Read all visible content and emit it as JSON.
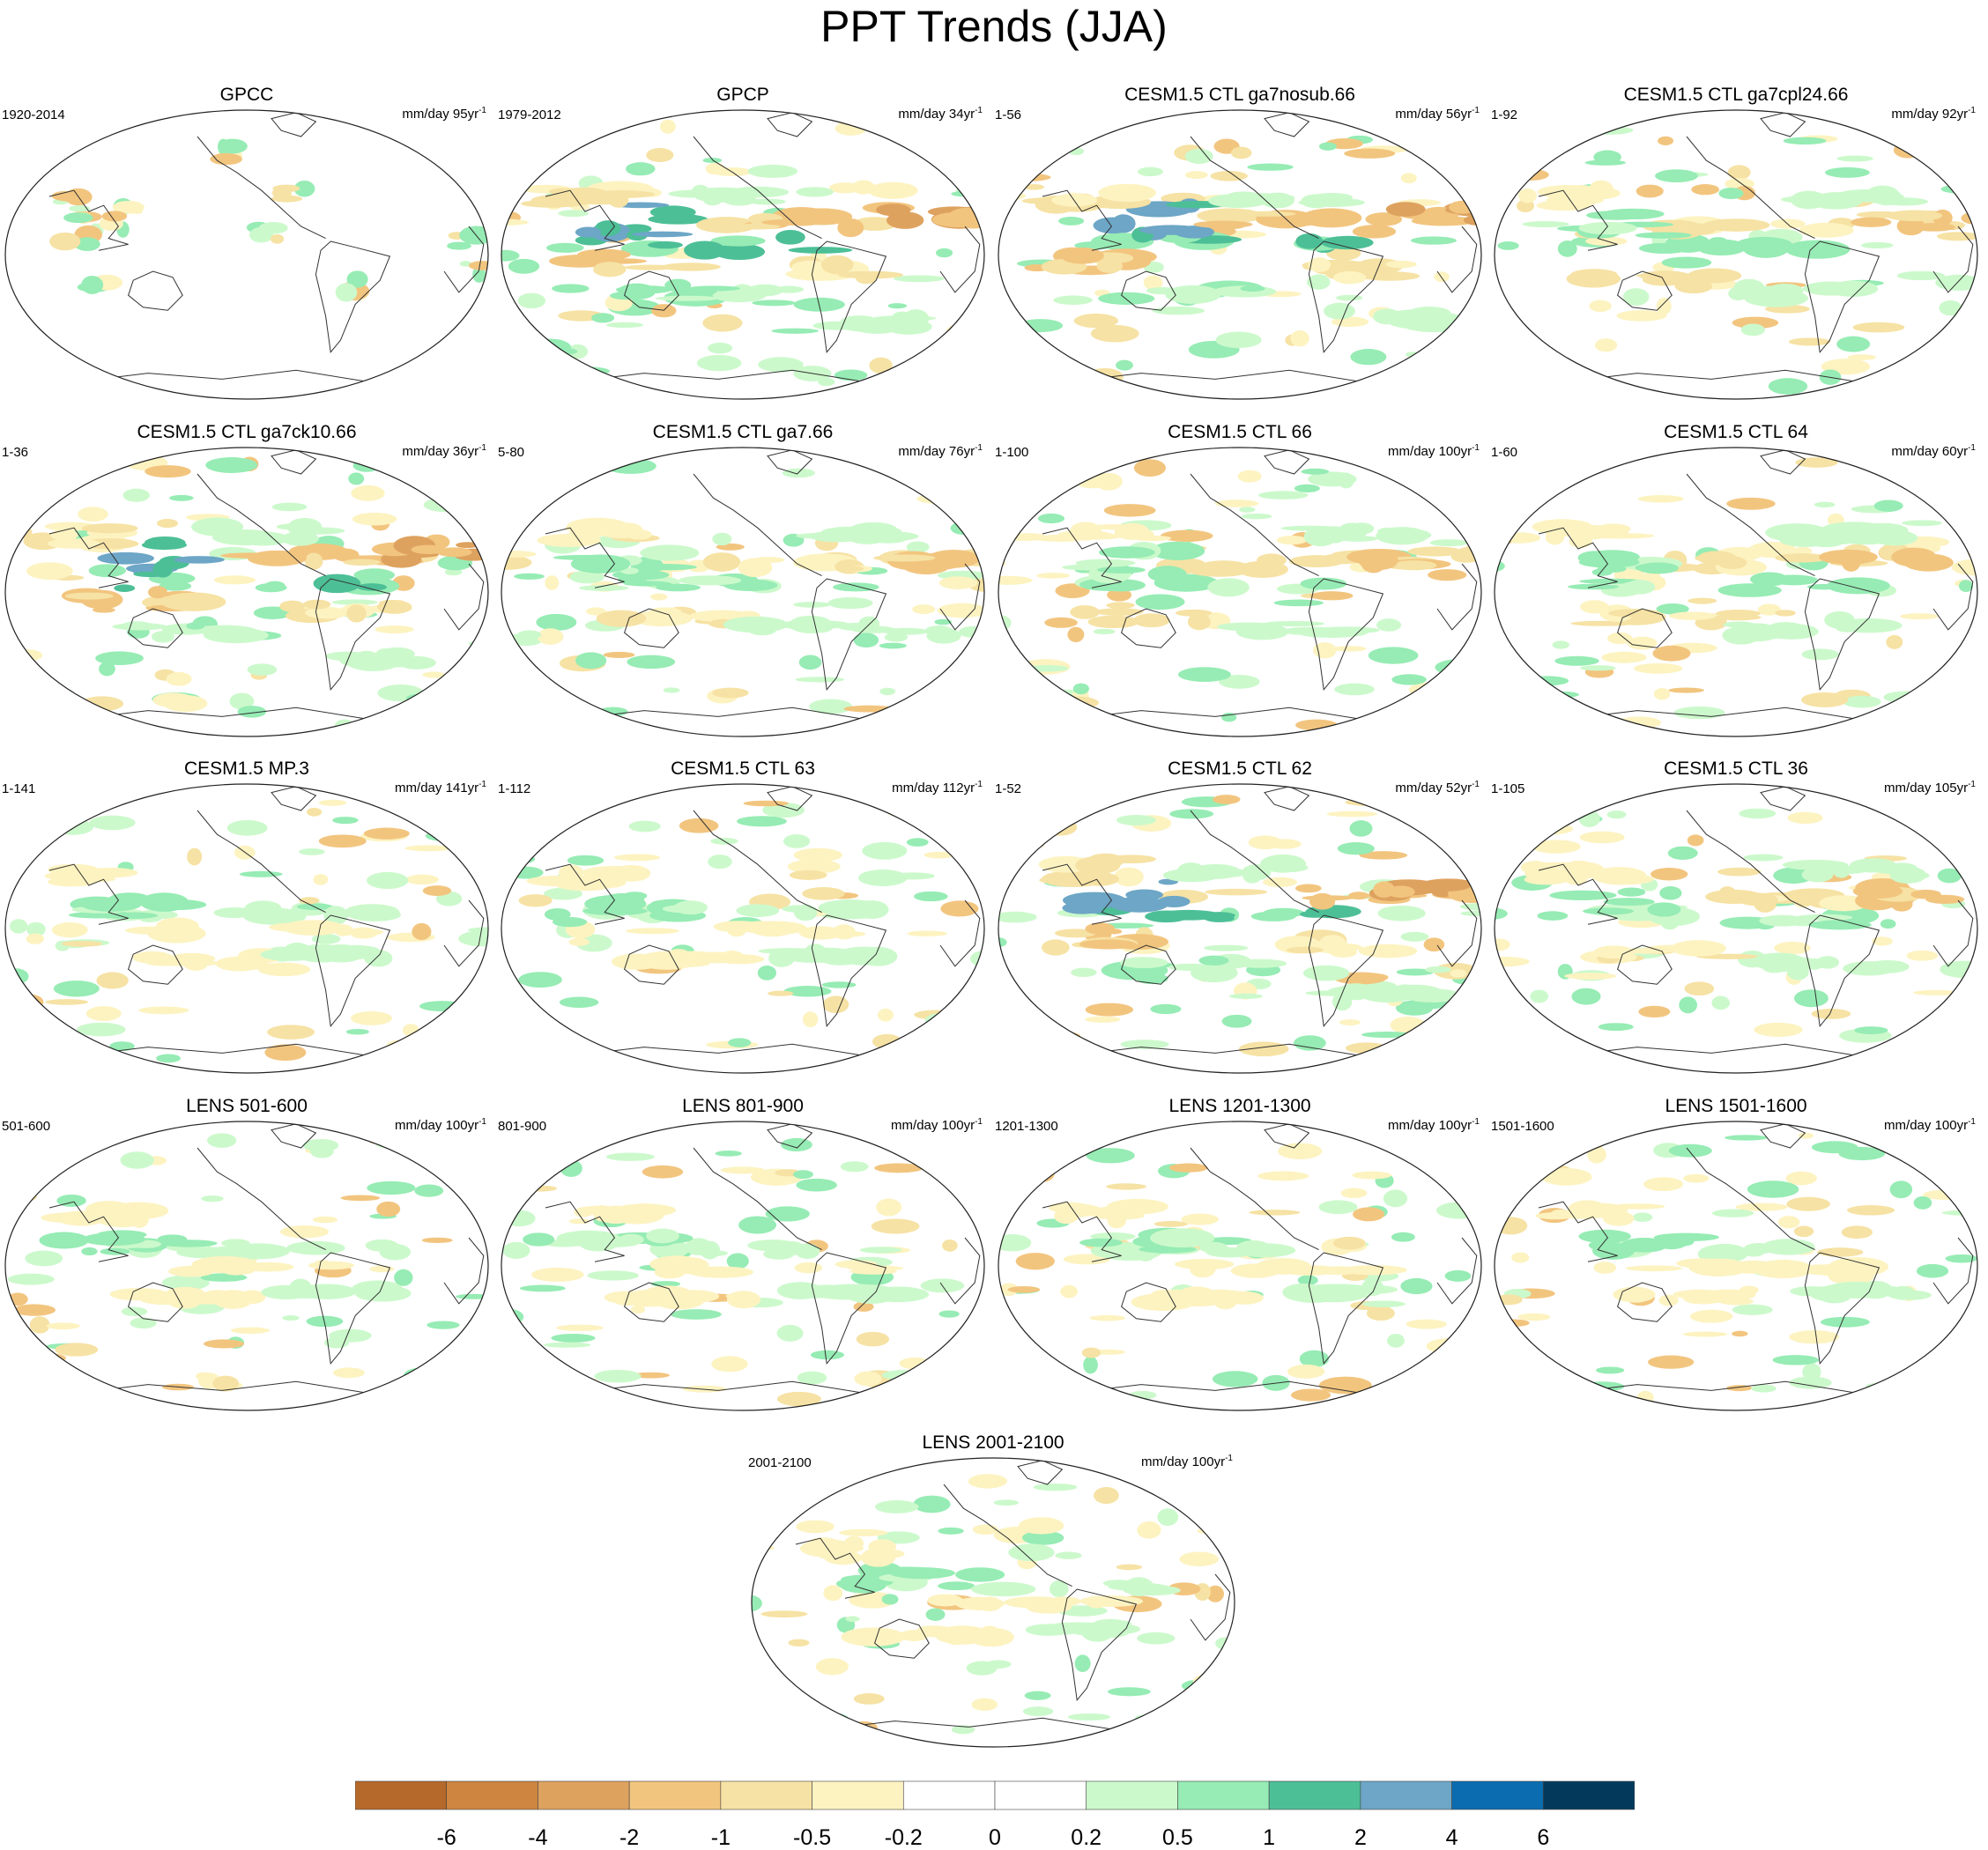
{
  "title": "PPT Trends (JJA)",
  "panels": [
    {
      "title": "GPCC",
      "period": "1920-2014",
      "units_prefix": "mm/day",
      "units_value": "95yr",
      "units_exp": "-1",
      "pattern": "obs-land"
    },
    {
      "title": "GPCP",
      "period": "1979-2012",
      "units_prefix": "mm/day",
      "units_value": "34yr",
      "units_exp": "-1",
      "pattern": "strong"
    },
    {
      "title": "CESM1.5 CTL ga7nosub.66",
      "period": "1-56",
      "units_prefix": "mm/day",
      "units_value": "56yr",
      "units_exp": "-1",
      "pattern": "strong"
    },
    {
      "title": "CESM1.5 CTL ga7cpl24.66",
      "period": "1-92",
      "units_prefix": "mm/day",
      "units_value": "92yr",
      "units_exp": "-1",
      "pattern": "medium"
    },
    {
      "title": "CESM1.5 CTL ga7ck10.66",
      "period": "1-36",
      "units_prefix": "mm/day",
      "units_value": "36yr",
      "units_exp": "-1",
      "pattern": "strong"
    },
    {
      "title": "CESM1.5 CTL ga7.66",
      "period": "5-80",
      "units_prefix": "mm/day",
      "units_value": "76yr",
      "units_exp": "-1",
      "pattern": "medium"
    },
    {
      "title": "CESM1.5 CTL 66",
      "period": "1-100",
      "units_prefix": "mm/day",
      "units_value": "100yr",
      "units_exp": "-1",
      "pattern": "medium"
    },
    {
      "title": "CESM1.5 CTL 64",
      "period": "1-60",
      "units_prefix": "mm/day",
      "units_value": "60yr",
      "units_exp": "-1",
      "pattern": "medium"
    },
    {
      "title": "CESM1.5 MP.3",
      "period": "1-141",
      "units_prefix": "mm/day",
      "units_value": "141yr",
      "units_exp": "-1",
      "pattern": "weak"
    },
    {
      "title": "CESM1.5 CTL 63",
      "period": "1-112",
      "units_prefix": "mm/day",
      "units_value": "112yr",
      "units_exp": "-1",
      "pattern": "weak"
    },
    {
      "title": "CESM1.5 CTL 62",
      "period": "1-52",
      "units_prefix": "mm/day",
      "units_value": "52yr",
      "units_exp": "-1",
      "pattern": "strong"
    },
    {
      "title": "CESM1.5 CTL 36",
      "period": "1-105",
      "units_prefix": "mm/day",
      "units_value": "105yr",
      "units_exp": "-1",
      "pattern": "medium"
    },
    {
      "title": "LENS 501-600",
      "period": "501-600",
      "units_prefix": "mm/day",
      "units_value": "100yr",
      "units_exp": "-1",
      "pattern": "weak"
    },
    {
      "title": "LENS 801-900",
      "period": "801-900",
      "units_prefix": "mm/day",
      "units_value": "100yr",
      "units_exp": "-1",
      "pattern": "weak"
    },
    {
      "title": "LENS 1201-1300",
      "period": "1201-1300",
      "units_prefix": "mm/day",
      "units_value": "100yr",
      "units_exp": "-1",
      "pattern": "weak"
    },
    {
      "title": "LENS 1501-1600",
      "period": "1501-1600",
      "units_prefix": "mm/day",
      "units_value": "100yr",
      "units_exp": "-1",
      "pattern": "weak"
    },
    {
      "title": "LENS 2001-2100",
      "period": "2001-2100",
      "units_prefix": "mm/day",
      "units_value": "100yr",
      "units_exp": "-1",
      "pattern": "weak"
    }
  ],
  "colorbar": {
    "colors": [
      "#b5692b",
      "#cd853f",
      "#dea25f",
      "#f2c57f",
      "#f6e2a4",
      "#fdf3c1",
      "#ffffff",
      "#ffffff",
      "#ccf9cc",
      "#96ecb4",
      "#4dbf97",
      "#6da6c6",
      "#0b6cb0",
      "#033a5b"
    ],
    "labels": [
      "-6",
      "-4",
      "-2",
      "-1",
      "-0.5",
      "-0.2",
      "0",
      "0.2",
      "0.5",
      "1",
      "2",
      "4",
      "6"
    ]
  }
}
